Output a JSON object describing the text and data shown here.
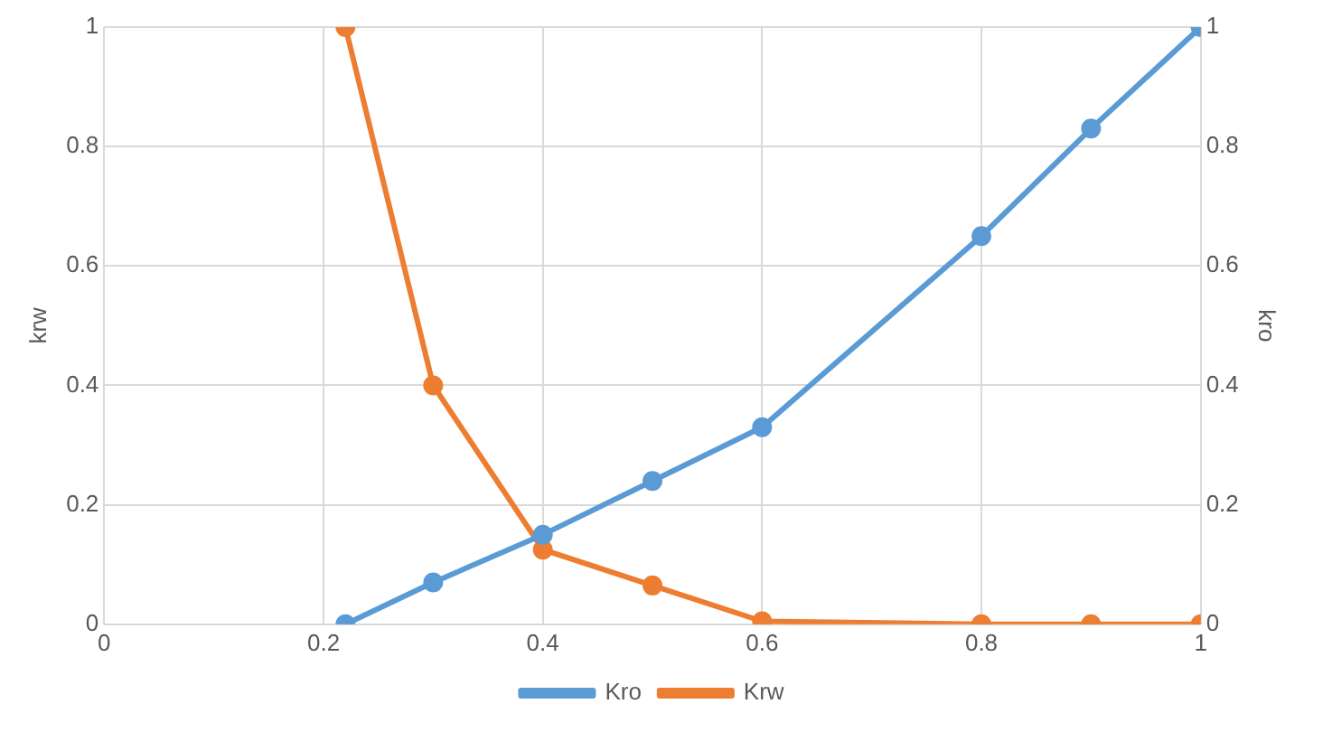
{
  "chart_data": {
    "type": "line",
    "ylabel": "krw",
    "y2label": "kro",
    "x": [
      0.22,
      0.3,
      0.4,
      0.5,
      0.6,
      0.8,
      0.9,
      1
    ],
    "series": [
      {
        "name": "Kro",
        "color": "#5b9bd5",
        "axis": "y2",
        "values": [
          0,
          0.07,
          0.15,
          0.24,
          0.33,
          0.65,
          0.83,
          1
        ]
      },
      {
        "name": "Krw",
        "color": "#ed7d31",
        "values": [
          1,
          0.4,
          0.125,
          0.065,
          0.005,
          0,
          0,
          0
        ]
      }
    ],
    "xlim": [
      0,
      1
    ],
    "xticks": [
      0,
      0.2,
      0.4,
      0.6,
      0.8,
      1
    ],
    "ylim": [
      0,
      1
    ],
    "yticks": [
      0,
      0.2,
      0.4,
      0.6,
      0.8,
      1
    ],
    "y2lim": [
      0,
      1
    ],
    "y2ticks": [
      0,
      0.2,
      0.4,
      0.6,
      0.8,
      1
    ],
    "grid": true,
    "legend": "bottom",
    "marker": "circle",
    "line_style": "solid"
  }
}
